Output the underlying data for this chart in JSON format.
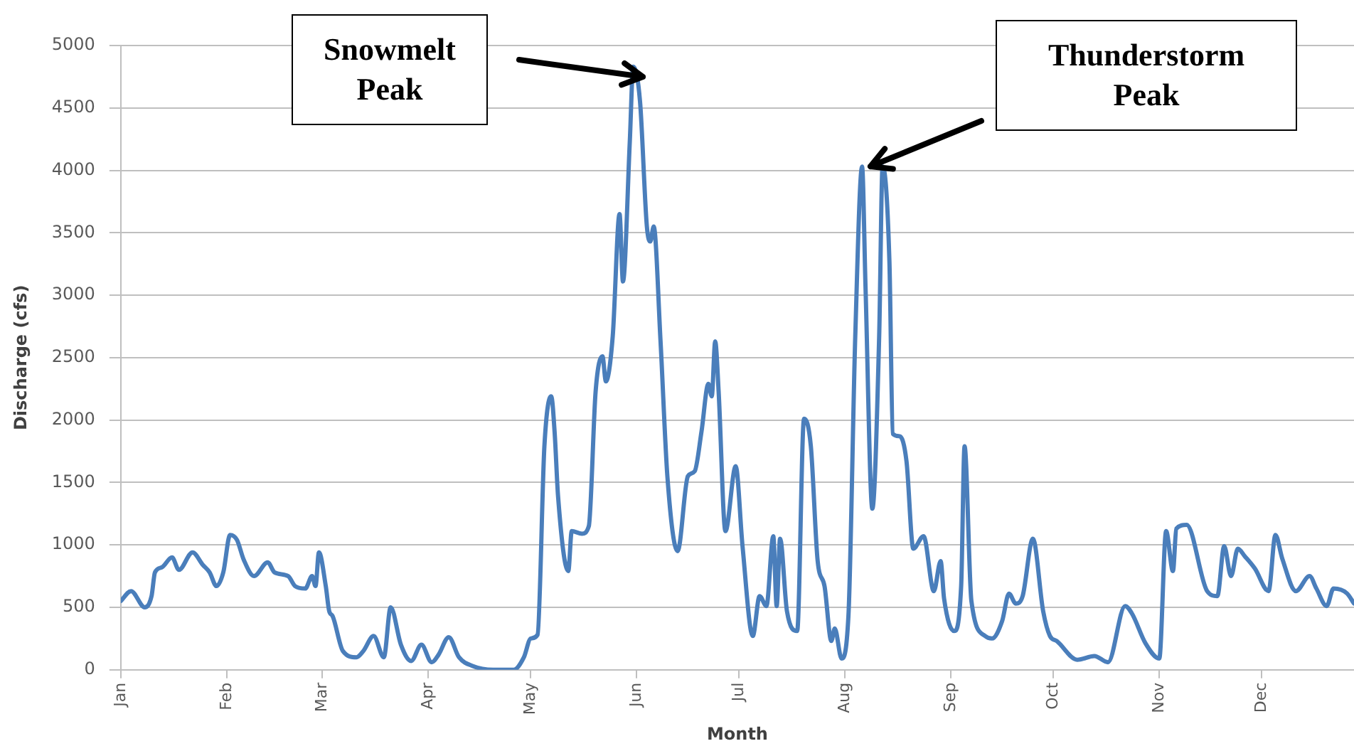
{
  "chart_data": {
    "type": "line",
    "xlabel": "Month",
    "ylabel": "Discharge (cfs)",
    "x": [
      "--01-01",
      "--01-04",
      "--01-08",
      "--01-10",
      "--01-11",
      "--01-13",
      "--01-16",
      "--01-18",
      "--01-22",
      "--01-25",
      "--01-27",
      "--01-29",
      "--01-31",
      "--02-02",
      "--02-04",
      "--02-06",
      "--02-09",
      "--02-13",
      "--02-15",
      "--02-19",
      "--02-21",
      "--02-24",
      "--02-26",
      "--02-27",
      "--02-28",
      "--03-02",
      "--03-03",
      "--03-04",
      "--03-07",
      "--03-11",
      "--03-13",
      "--03-16",
      "--03-19",
      "--03-21",
      "--03-24",
      "--03-27",
      "--03-30",
      "--04-02",
      "--04-04",
      "--04-07",
      "--04-10",
      "--04-14",
      "--04-20",
      "--04-26",
      "--04-29",
      "--05-01",
      "--05-03",
      "--05-05",
      "--05-07",
      "--05-08",
      "--05-09",
      "--05-12",
      "--05-13",
      "--05-16",
      "--05-18",
      "--05-20",
      "--05-22",
      "--05-23",
      "--05-25",
      "--05-27",
      "--05-28",
      "--05-30",
      "--05-31",
      "--06-02",
      "--06-04",
      "--06-05",
      "--06-06",
      "--06-08",
      "--06-10",
      "--06-13",
      "--06-16",
      "--06-18",
      "--06-20",
      "--06-22",
      "--06-23",
      "--06-24",
      "--06-25",
      "--06-27",
      "--06-30",
      "--07-02",
      "--07-05",
      "--07-07",
      "--07-09",
      "--07-11",
      "--07-12",
      "--07-13",
      "--07-15",
      "--07-18",
      "--07-20",
      "--07-22",
      "--07-24",
      "--07-26",
      "--07-28",
      "--07-29",
      "--07-31",
      "--08-02",
      "--08-04",
      "--08-06",
      "--08-07",
      "--08-09",
      "--08-11",
      "--08-12",
      "--08-14",
      "--08-15",
      "--08-17",
      "--08-19",
      "--08-21",
      "--08-24",
      "--08-27",
      "--08-29",
      "--08-30",
      "--09-02",
      "--09-04",
      "--09-05",
      "--09-07",
      "--09-11",
      "--09-13",
      "--09-16",
      "--09-18",
      "--09-20",
      "--09-22",
      "--09-25",
      "--09-28",
      "--09-30",
      "--10-02",
      "--10-08",
      "--10-13",
      "--10-17",
      "--10-22",
      "--10-24",
      "--10-28",
      "--11-01",
      "--11-03",
      "--11-05",
      "--11-06",
      "--11-09",
      "--11-15",
      "--11-18",
      "--11-20",
      "--11-22",
      "--11-24",
      "--11-26",
      "--11-29",
      "--12-03",
      "--12-05",
      "--12-07",
      "--12-11",
      "--12-15",
      "--12-17",
      "--12-20",
      "--12-22",
      "--12-26",
      "--12-28"
    ],
    "series": [
      {
        "color": "#4a7ebb",
        "values": [
          550,
          630,
          500,
          590,
          780,
          820,
          900,
          800,
          940,
          840,
          780,
          670,
          780,
          1080,
          1040,
          880,
          750,
          860,
          780,
          750,
          670,
          650,
          750,
          670,
          940,
          670,
          470,
          430,
          150,
          100,
          150,
          270,
          100,
          500,
          200,
          70,
          200,
          60,
          120,
          260,
          100,
          30,
          0,
          0,
          100,
          250,
          280,
          1790,
          2190,
          1900,
          1390,
          790,
          1110,
          1090,
          1150,
          2230,
          2510,
          2310,
          2670,
          3650,
          3110,
          4230,
          4830,
          4550,
          3550,
          3430,
          3550,
          2630,
          1550,
          950,
          1550,
          1590,
          1910,
          2290,
          2190,
          2630,
          2230,
          1110,
          1630,
          990,
          270,
          590,
          510,
          1070,
          510,
          1050,
          470,
          310,
          2010,
          1790,
          870,
          670,
          230,
          330,
          90,
          430,
          2670,
          4030,
          3070,
          1290,
          2670,
          4030,
          3270,
          1890,
          1870,
          1670,
          970,
          1070,
          630,
          870,
          570,
          310,
          670,
          1790,
          550,
          270,
          250,
          390,
          610,
          530,
          590,
          1050,
          470,
          270,
          230,
          80,
          110,
          60,
          510,
          450,
          210,
          90,
          1110,
          790,
          1130,
          1160,
          630,
          590,
          990,
          750,
          970,
          910,
          810,
          630,
          1080,
          890,
          630,
          750,
          650,
          510,
          650,
          610,
          530
        ]
      }
    ],
    "xlim": [
      "--01-01",
      "--12-28"
    ],
    "xticks": [
      {
        "value": "--01-01",
        "label": "Jan"
      },
      {
        "value": "--02-01",
        "label": "Feb"
      },
      {
        "value": "--03-01",
        "label": "Mar"
      },
      {
        "value": "--04-01",
        "label": "Apr"
      },
      {
        "value": "--05-01",
        "label": "May"
      },
      {
        "value": "--06-01",
        "label": "Jun"
      },
      {
        "value": "--07-01",
        "label": "Jul"
      },
      {
        "value": "--08-01",
        "label": "Aug"
      },
      {
        "value": "--09-01",
        "label": "Sep"
      },
      {
        "value": "--10-01",
        "label": "Oct"
      },
      {
        "value": "--11-01",
        "label": "Nov"
      },
      {
        "value": "--12-01",
        "label": "Dec"
      }
    ],
    "ylim": [
      0,
      5000
    ],
    "yticks": [
      0,
      500,
      1000,
      1500,
      2000,
      2500,
      3000,
      3500,
      4000,
      4500,
      5000
    ],
    "grid": "y",
    "marker": "none",
    "line_style": "solid",
    "annotations": [
      "Snowmelt\nPeak",
      "Thunderstorm\nPeak"
    ]
  }
}
